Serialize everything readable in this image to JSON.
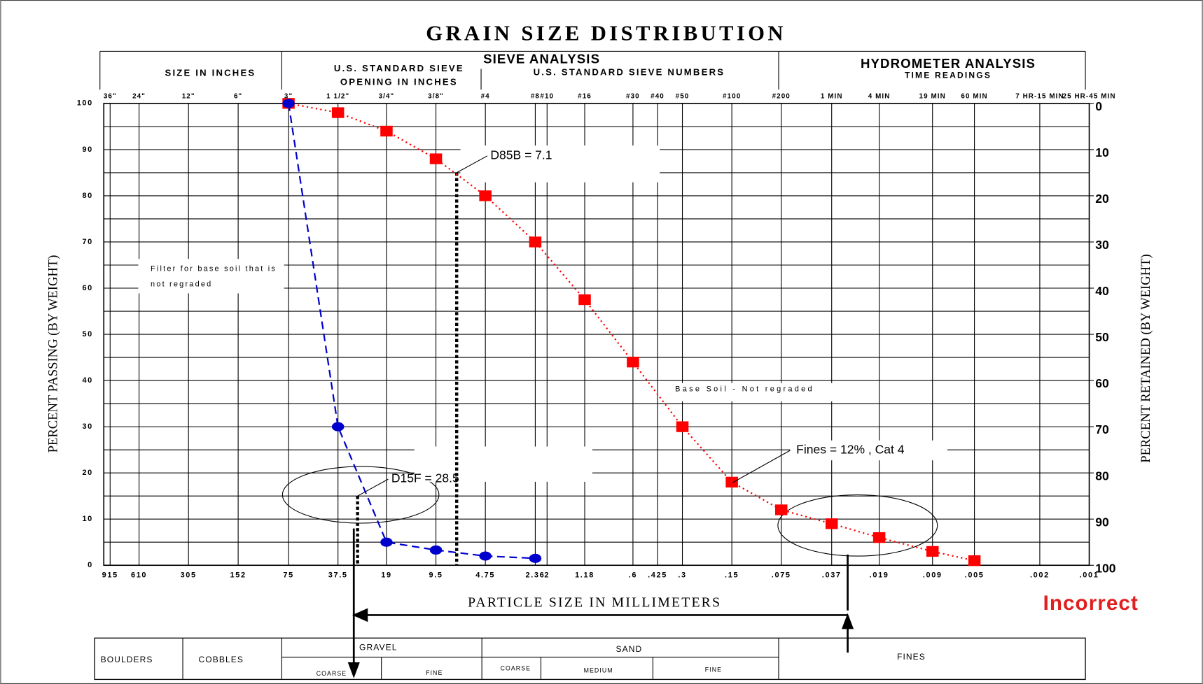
{
  "chart_data": {
    "type": "line",
    "title": "GRAIN SIZE DISTRIBUTION",
    "x_label": "PARTICLE SIZE IN MILLIMETERS",
    "y_label": "PERCENT PASSING (BY WEIGHT)",
    "y2_label": "PERCENT RETAINED (BY WEIGHT)",
    "x_scale": "log",
    "xlim": [
      1000,
      0.001
    ],
    "xticks": [
      915,
      610,
      305,
      152,
      75,
      37.5,
      19,
      9.5,
      4.75,
      2.36,
      2,
      1.18,
      {
        "value": 0.6,
        "label": ".6"
      },
      {
        "value": 0.425,
        "label": ".425"
      },
      {
        "value": 0.3,
        "label": ".3"
      },
      {
        "value": 0.15,
        "label": ".15"
      },
      {
        "value": 0.075,
        "label": ".075"
      },
      {
        "value": 0.037,
        "label": ".037"
      },
      {
        "value": 0.019,
        "label": ".019"
      },
      {
        "value": 0.009,
        "label": ".009"
      },
      {
        "value": 0.005,
        "label": ".005"
      },
      {
        "value": 0.002,
        "label": ".002"
      },
      {
        "value": 0.001,
        "label": ".001"
      }
    ],
    "top_tick_labels": [
      "36\"",
      "24\"",
      "12\"",
      "6\"",
      "3\"",
      "1 1/2\"",
      "3/4\"",
      "3/8\"",
      "#4",
      "#8",
      "#10",
      "#16",
      "#30",
      "#40",
      "#50",
      "#100",
      "#200",
      "1 MIN",
      "4 MIN",
      "19 MIN",
      "60 MIN",
      "7 HR-15 MIN",
      "25 HR-45 MIN"
    ],
    "ylim": [
      0,
      100
    ],
    "yticks": [
      0,
      10,
      20,
      30,
      40,
      50,
      60,
      70,
      80,
      90,
      100
    ],
    "y_minor_ticks": [
      5,
      15,
      25,
      35,
      45,
      55,
      65,
      75,
      85,
      95
    ],
    "y2lim": [
      100,
      0
    ],
    "y2ticks": [
      0,
      10,
      20,
      30,
      40,
      50,
      60,
      70,
      80,
      90,
      100
    ],
    "grid": true,
    "series": [
      {
        "name": "Base Soil - Not regraded",
        "color": "#ff0000",
        "marker": "square",
        "dash": "dotted",
        "x": [
          75,
          37.5,
          19,
          9.5,
          4.75,
          2.36,
          1.18,
          0.6,
          0.3,
          0.15,
          0.075,
          0.037,
          0.019,
          0.009,
          0.005
        ],
        "values": [
          100,
          98,
          94,
          88,
          80,
          70,
          57.5,
          44,
          30,
          18,
          12,
          9,
          6,
          3,
          1
        ]
      },
      {
        "name": "Filter for base soil that is not regraded",
        "color": "#0000cc",
        "marker": "circle",
        "dash": "dashed",
        "x": [
          75,
          37.5,
          19,
          9.5,
          4.75,
          2.36
        ],
        "values": [
          100,
          30,
          5,
          3.3,
          2,
          1.5
        ]
      }
    ],
    "reference_lines": [
      {
        "label": "D85B = 7.1",
        "x": 7.1,
        "y": 85
      },
      {
        "label": "D15F = 28.5",
        "x": 28.5,
        "y": 15
      }
    ],
    "annotations": {
      "fines": "Fines = 12% , Cat 4",
      "verdict": "Incorrect"
    },
    "headers": {
      "size_in_inches": "SIZE IN INCHES",
      "sieve_opening": "U.S. STANDARD SIEVE OPENING IN INCHES",
      "sieve_analysis": "SIEVE ANALYSIS",
      "sieve_numbers": "U.S. STANDARD SIEVE NUMBERS",
      "hydrometer": "HYDROMETER ANALYSIS",
      "time_readings": "TIME READINGS"
    },
    "classification": {
      "boulders": "BOULDERS",
      "cobbles": "COBBLES",
      "gravel": "GRAVEL",
      "gravel_coarse": "COARSE",
      "gravel_fine": "FINE",
      "sand": "SAND",
      "sand_coarse": "COARSE",
      "sand_medium": "MEDIUM",
      "sand_fine": "FINE",
      "fines": "FINES"
    }
  }
}
